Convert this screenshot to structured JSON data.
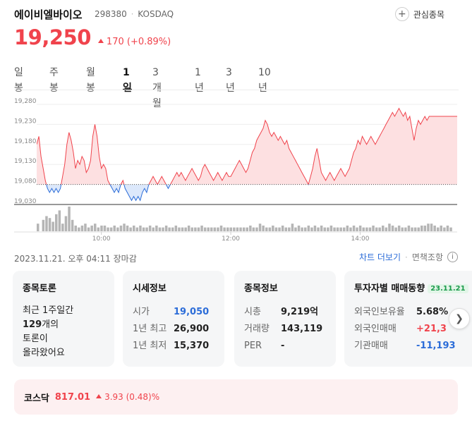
{
  "stock": {
    "name": "에이비엘바이오",
    "code": "298380",
    "market": "KOSDAQ",
    "watch_label": "관심종목",
    "price": "19,250",
    "change": "170",
    "change_pct": "(+0.89%)"
  },
  "tabs": [
    {
      "label": "일봉",
      "active": false
    },
    {
      "label": "주봉",
      "active": false
    },
    {
      "label": "월봉",
      "active": false
    },
    {
      "label": "1일",
      "active": true
    },
    {
      "label": "3개월",
      "active": false
    },
    {
      "label": "1년",
      "active": false
    },
    {
      "label": "3년",
      "active": false
    },
    {
      "label": "10년",
      "active": false
    }
  ],
  "colors": {
    "up": "#f0434c",
    "down": "#2b6cd8",
    "up_fill": "#fde0e1",
    "down_fill": "#dce8fb"
  },
  "chart_data": {
    "type": "line",
    "title": "",
    "xlabel": "",
    "ylabel": "",
    "baseline": 19080,
    "ylim": [
      19030,
      19280
    ],
    "y_ticks": [
      "19,280",
      "19,230",
      "19,180",
      "19,130",
      "19,080",
      "19,030"
    ],
    "x_ticks": [
      {
        "label": "10:00",
        "t": 60
      },
      {
        "label": "12:00",
        "t": 180
      },
      {
        "label": "14:00",
        "t": 300
      }
    ],
    "x_range": [
      0,
      390
    ],
    "series": [
      {
        "points": [
          [
            0,
            19180
          ],
          [
            2,
            19200
          ],
          [
            4,
            19150
          ],
          [
            6,
            19120
          ],
          [
            8,
            19090
          ],
          [
            10,
            19070
          ],
          [
            12,
            19060
          ],
          [
            14,
            19070
          ],
          [
            16,
            19060
          ],
          [
            18,
            19070
          ],
          [
            20,
            19060
          ],
          [
            22,
            19070
          ],
          [
            24,
            19100
          ],
          [
            26,
            19130
          ],
          [
            28,
            19180
          ],
          [
            30,
            19210
          ],
          [
            32,
            19190
          ],
          [
            34,
            19160
          ],
          [
            36,
            19120
          ],
          [
            38,
            19140
          ],
          [
            40,
            19130
          ],
          [
            42,
            19150
          ],
          [
            44,
            19140
          ],
          [
            46,
            19110
          ],
          [
            48,
            19120
          ],
          [
            50,
            19140
          ],
          [
            52,
            19200
          ],
          [
            54,
            19230
          ],
          [
            56,
            19200
          ],
          [
            58,
            19150
          ],
          [
            60,
            19120
          ],
          [
            62,
            19130
          ],
          [
            64,
            19120
          ],
          [
            66,
            19090
          ],
          [
            68,
            19080
          ],
          [
            70,
            19070
          ],
          [
            72,
            19060
          ],
          [
            74,
            19070
          ],
          [
            76,
            19060
          ],
          [
            78,
            19080
          ],
          [
            80,
            19090
          ],
          [
            82,
            19070
          ],
          [
            84,
            19060
          ],
          [
            86,
            19050
          ],
          [
            88,
            19040
          ],
          [
            90,
            19050
          ],
          [
            92,
            19040
          ],
          [
            94,
            19050
          ],
          [
            96,
            19040
          ],
          [
            98,
            19060
          ],
          [
            100,
            19070
          ],
          [
            102,
            19060
          ],
          [
            104,
            19080
          ],
          [
            106,
            19090
          ],
          [
            108,
            19100
          ],
          [
            110,
            19090
          ],
          [
            112,
            19080
          ],
          [
            114,
            19090
          ],
          [
            116,
            19100
          ],
          [
            118,
            19090
          ],
          [
            120,
            19080
          ],
          [
            122,
            19070
          ],
          [
            124,
            19080
          ],
          [
            126,
            19090
          ],
          [
            128,
            19100
          ],
          [
            130,
            19110
          ],
          [
            132,
            19100
          ],
          [
            134,
            19110
          ],
          [
            136,
            19100
          ],
          [
            138,
            19090
          ],
          [
            140,
            19100
          ],
          [
            142,
            19110
          ],
          [
            144,
            19120
          ],
          [
            146,
            19110
          ],
          [
            148,
            19100
          ],
          [
            150,
            19090
          ],
          [
            152,
            19100
          ],
          [
            154,
            19120
          ],
          [
            156,
            19130
          ],
          [
            158,
            19120
          ],
          [
            160,
            19110
          ],
          [
            162,
            19100
          ],
          [
            164,
            19090
          ],
          [
            166,
            19100
          ],
          [
            168,
            19110
          ],
          [
            170,
            19100
          ],
          [
            172,
            19090
          ],
          [
            174,
            19100
          ],
          [
            176,
            19110
          ],
          [
            178,
            19100
          ],
          [
            180,
            19100
          ],
          [
            182,
            19110
          ],
          [
            184,
            19120
          ],
          [
            186,
            19130
          ],
          [
            188,
            19140
          ],
          [
            190,
            19130
          ],
          [
            192,
            19120
          ],
          [
            194,
            19110
          ],
          [
            196,
            19120
          ],
          [
            198,
            19140
          ],
          [
            200,
            19160
          ],
          [
            202,
            19170
          ],
          [
            204,
            19190
          ],
          [
            206,
            19200
          ],
          [
            208,
            19210
          ],
          [
            210,
            19220
          ],
          [
            212,
            19240
          ],
          [
            214,
            19230
          ],
          [
            216,
            19210
          ],
          [
            218,
            19200
          ],
          [
            220,
            19210
          ],
          [
            222,
            19200
          ],
          [
            224,
            19190
          ],
          [
            226,
            19200
          ],
          [
            228,
            19190
          ],
          [
            230,
            19180
          ],
          [
            232,
            19190
          ],
          [
            234,
            19170
          ],
          [
            236,
            19160
          ],
          [
            238,
            19150
          ],
          [
            240,
            19140
          ],
          [
            242,
            19130
          ],
          [
            244,
            19120
          ],
          [
            246,
            19110
          ],
          [
            248,
            19100
          ],
          [
            250,
            19090
          ],
          [
            252,
            19080
          ],
          [
            254,
            19100
          ],
          [
            256,
            19120
          ],
          [
            258,
            19150
          ],
          [
            260,
            19170
          ],
          [
            262,
            19140
          ],
          [
            264,
            19110
          ],
          [
            266,
            19100
          ],
          [
            268,
            19090
          ],
          [
            270,
            19100
          ],
          [
            272,
            19110
          ],
          [
            274,
            19100
          ],
          [
            276,
            19090
          ],
          [
            278,
            19100
          ],
          [
            280,
            19110
          ],
          [
            282,
            19120
          ],
          [
            284,
            19110
          ],
          [
            286,
            19100
          ],
          [
            288,
            19110
          ],
          [
            290,
            19120
          ],
          [
            292,
            19140
          ],
          [
            294,
            19160
          ],
          [
            296,
            19170
          ],
          [
            298,
            19190
          ],
          [
            300,
            19180
          ],
          [
            302,
            19200
          ],
          [
            304,
            19190
          ],
          [
            306,
            19180
          ],
          [
            308,
            19190
          ],
          [
            310,
            19200
          ],
          [
            312,
            19190
          ],
          [
            314,
            19180
          ],
          [
            316,
            19190
          ],
          [
            318,
            19200
          ],
          [
            320,
            19210
          ],
          [
            322,
            19220
          ],
          [
            324,
            19230
          ],
          [
            326,
            19240
          ],
          [
            328,
            19250
          ],
          [
            330,
            19260
          ],
          [
            332,
            19250
          ],
          [
            334,
            19260
          ],
          [
            336,
            19270
          ],
          [
            338,
            19260
          ],
          [
            340,
            19250
          ],
          [
            342,
            19260
          ],
          [
            344,
            19240
          ],
          [
            346,
            19250
          ],
          [
            348,
            19220
          ],
          [
            350,
            19190
          ],
          [
            352,
            19220
          ],
          [
            354,
            19240
          ],
          [
            356,
            19230
          ],
          [
            358,
            19240
          ],
          [
            360,
            19250
          ],
          [
            362,
            19240
          ],
          [
            364,
            19250
          ],
          [
            366,
            19250
          ],
          [
            368,
            19250
          ],
          [
            370,
            19250
          ],
          [
            372,
            19250
          ],
          [
            374,
            19250
          ],
          [
            376,
            19250
          ],
          [
            378,
            19250
          ],
          [
            380,
            19250
          ],
          [
            382,
            19250
          ],
          [
            384,
            19250
          ],
          [
            386,
            19250
          ],
          [
            388,
            19250
          ],
          [
            390,
            19250
          ]
        ]
      }
    ],
    "volume": [
      [
        0,
        4
      ],
      [
        5,
        6
      ],
      [
        8,
        8
      ],
      [
        11,
        7
      ],
      [
        14,
        5
      ],
      [
        17,
        9
      ],
      [
        20,
        11
      ],
      [
        23,
        4
      ],
      [
        26,
        8
      ],
      [
        29,
        13
      ],
      [
        32,
        6
      ],
      [
        35,
        3
      ],
      [
        38,
        2
      ],
      [
        41,
        3
      ],
      [
        44,
        4
      ],
      [
        47,
        2
      ],
      [
        50,
        3
      ],
      [
        53,
        4
      ],
      [
        56,
        2
      ],
      [
        59,
        3
      ],
      [
        62,
        3
      ],
      [
        65,
        2
      ],
      [
        68,
        2
      ],
      [
        71,
        3
      ],
      [
        74,
        2
      ],
      [
        77,
        3
      ],
      [
        80,
        4
      ],
      [
        83,
        3
      ],
      [
        86,
        2
      ],
      [
        89,
        3
      ],
      [
        92,
        2
      ],
      [
        95,
        3
      ],
      [
        98,
        2
      ],
      [
        101,
        2
      ],
      [
        104,
        3
      ],
      [
        107,
        2
      ],
      [
        110,
        3
      ],
      [
        113,
        2
      ],
      [
        116,
        2
      ],
      [
        119,
        3
      ],
      [
        122,
        2
      ],
      [
        125,
        2
      ],
      [
        128,
        3
      ],
      [
        131,
        2
      ],
      [
        134,
        2
      ],
      [
        137,
        2
      ],
      [
        140,
        3
      ],
      [
        143,
        2
      ],
      [
        146,
        2
      ],
      [
        149,
        2
      ],
      [
        152,
        3
      ],
      [
        155,
        2
      ],
      [
        158,
        2
      ],
      [
        161,
        2
      ],
      [
        164,
        2
      ],
      [
        167,
        2
      ],
      [
        170,
        3
      ],
      [
        173,
        2
      ],
      [
        176,
        2
      ],
      [
        179,
        2
      ],
      [
        182,
        2
      ],
      [
        185,
        2
      ],
      [
        188,
        2
      ],
      [
        191,
        2
      ],
      [
        194,
        2
      ],
      [
        197,
        3
      ],
      [
        200,
        2
      ],
      [
        203,
        2
      ],
      [
        206,
        4
      ],
      [
        209,
        3
      ],
      [
        212,
        2
      ],
      [
        215,
        2
      ],
      [
        218,
        3
      ],
      [
        221,
        2
      ],
      [
        224,
        2
      ],
      [
        227,
        3
      ],
      [
        230,
        2
      ],
      [
        233,
        2
      ],
      [
        236,
        4
      ],
      [
        239,
        2
      ],
      [
        242,
        3
      ],
      [
        245,
        2
      ],
      [
        248,
        2
      ],
      [
        251,
        3
      ],
      [
        254,
        2
      ],
      [
        257,
        3
      ],
      [
        260,
        2
      ],
      [
        263,
        3
      ],
      [
        266,
        2
      ],
      [
        269,
        2
      ],
      [
        272,
        3
      ],
      [
        275,
        2
      ],
      [
        278,
        2
      ],
      [
        281,
        2
      ],
      [
        284,
        2
      ],
      [
        287,
        3
      ],
      [
        290,
        2
      ],
      [
        293,
        3
      ],
      [
        296,
        2
      ],
      [
        299,
        3
      ],
      [
        302,
        2
      ],
      [
        305,
        2
      ],
      [
        308,
        2
      ],
      [
        311,
        3
      ],
      [
        314,
        2
      ],
      [
        317,
        2
      ],
      [
        320,
        3
      ],
      [
        323,
        2
      ],
      [
        326,
        4
      ],
      [
        329,
        3
      ],
      [
        332,
        2
      ],
      [
        335,
        3
      ],
      [
        338,
        2
      ],
      [
        341,
        2
      ],
      [
        344,
        3
      ],
      [
        347,
        2
      ],
      [
        350,
        2
      ],
      [
        353,
        2
      ],
      [
        356,
        3
      ],
      [
        359,
        3
      ],
      [
        362,
        4
      ],
      [
        365,
        4
      ],
      [
        368,
        3
      ],
      [
        371,
        2
      ],
      [
        374,
        3
      ],
      [
        377,
        2
      ],
      [
        380,
        3
      ],
      [
        383,
        2
      ]
    ]
  },
  "timestamp": "2023.11.21. 오후 04:11 장마감",
  "links": {
    "more_chart": "차트 더보기",
    "disclaimer": "면책조항"
  },
  "cards": {
    "discussion": {
      "title": "종목토론",
      "line1": "최근 1주일간",
      "count": "129",
      "count_suffix": "개의",
      "line3": "토론이",
      "line4": "올라왔어요"
    },
    "quote": {
      "title": "시세정보",
      "rows": [
        {
          "k": "시가",
          "v": "19,050"
        },
        {
          "k": "1년 최고",
          "v": "26,900"
        },
        {
          "k": "1년 최저",
          "v": "15,370"
        }
      ]
    },
    "info": {
      "title": "종목정보",
      "rows": [
        {
          "k": "시총",
          "v": "9,219억"
        },
        {
          "k": "거래량",
          "v": "143,119"
        },
        {
          "k": "PER",
          "v": "-"
        }
      ]
    },
    "investors": {
      "title": "투자자별 매매동향",
      "date": "23.11.21",
      "rows": [
        {
          "k": "외국인보유율",
          "v": "5.68%"
        },
        {
          "k": "외국인매매",
          "v": "+21,3"
        },
        {
          "k": "기관매매",
          "v": "-11,193"
        }
      ]
    }
  },
  "market": {
    "name": "코스닥",
    "value": "817.01",
    "change": "3.93",
    "change_pct": "(0.48)%"
  }
}
